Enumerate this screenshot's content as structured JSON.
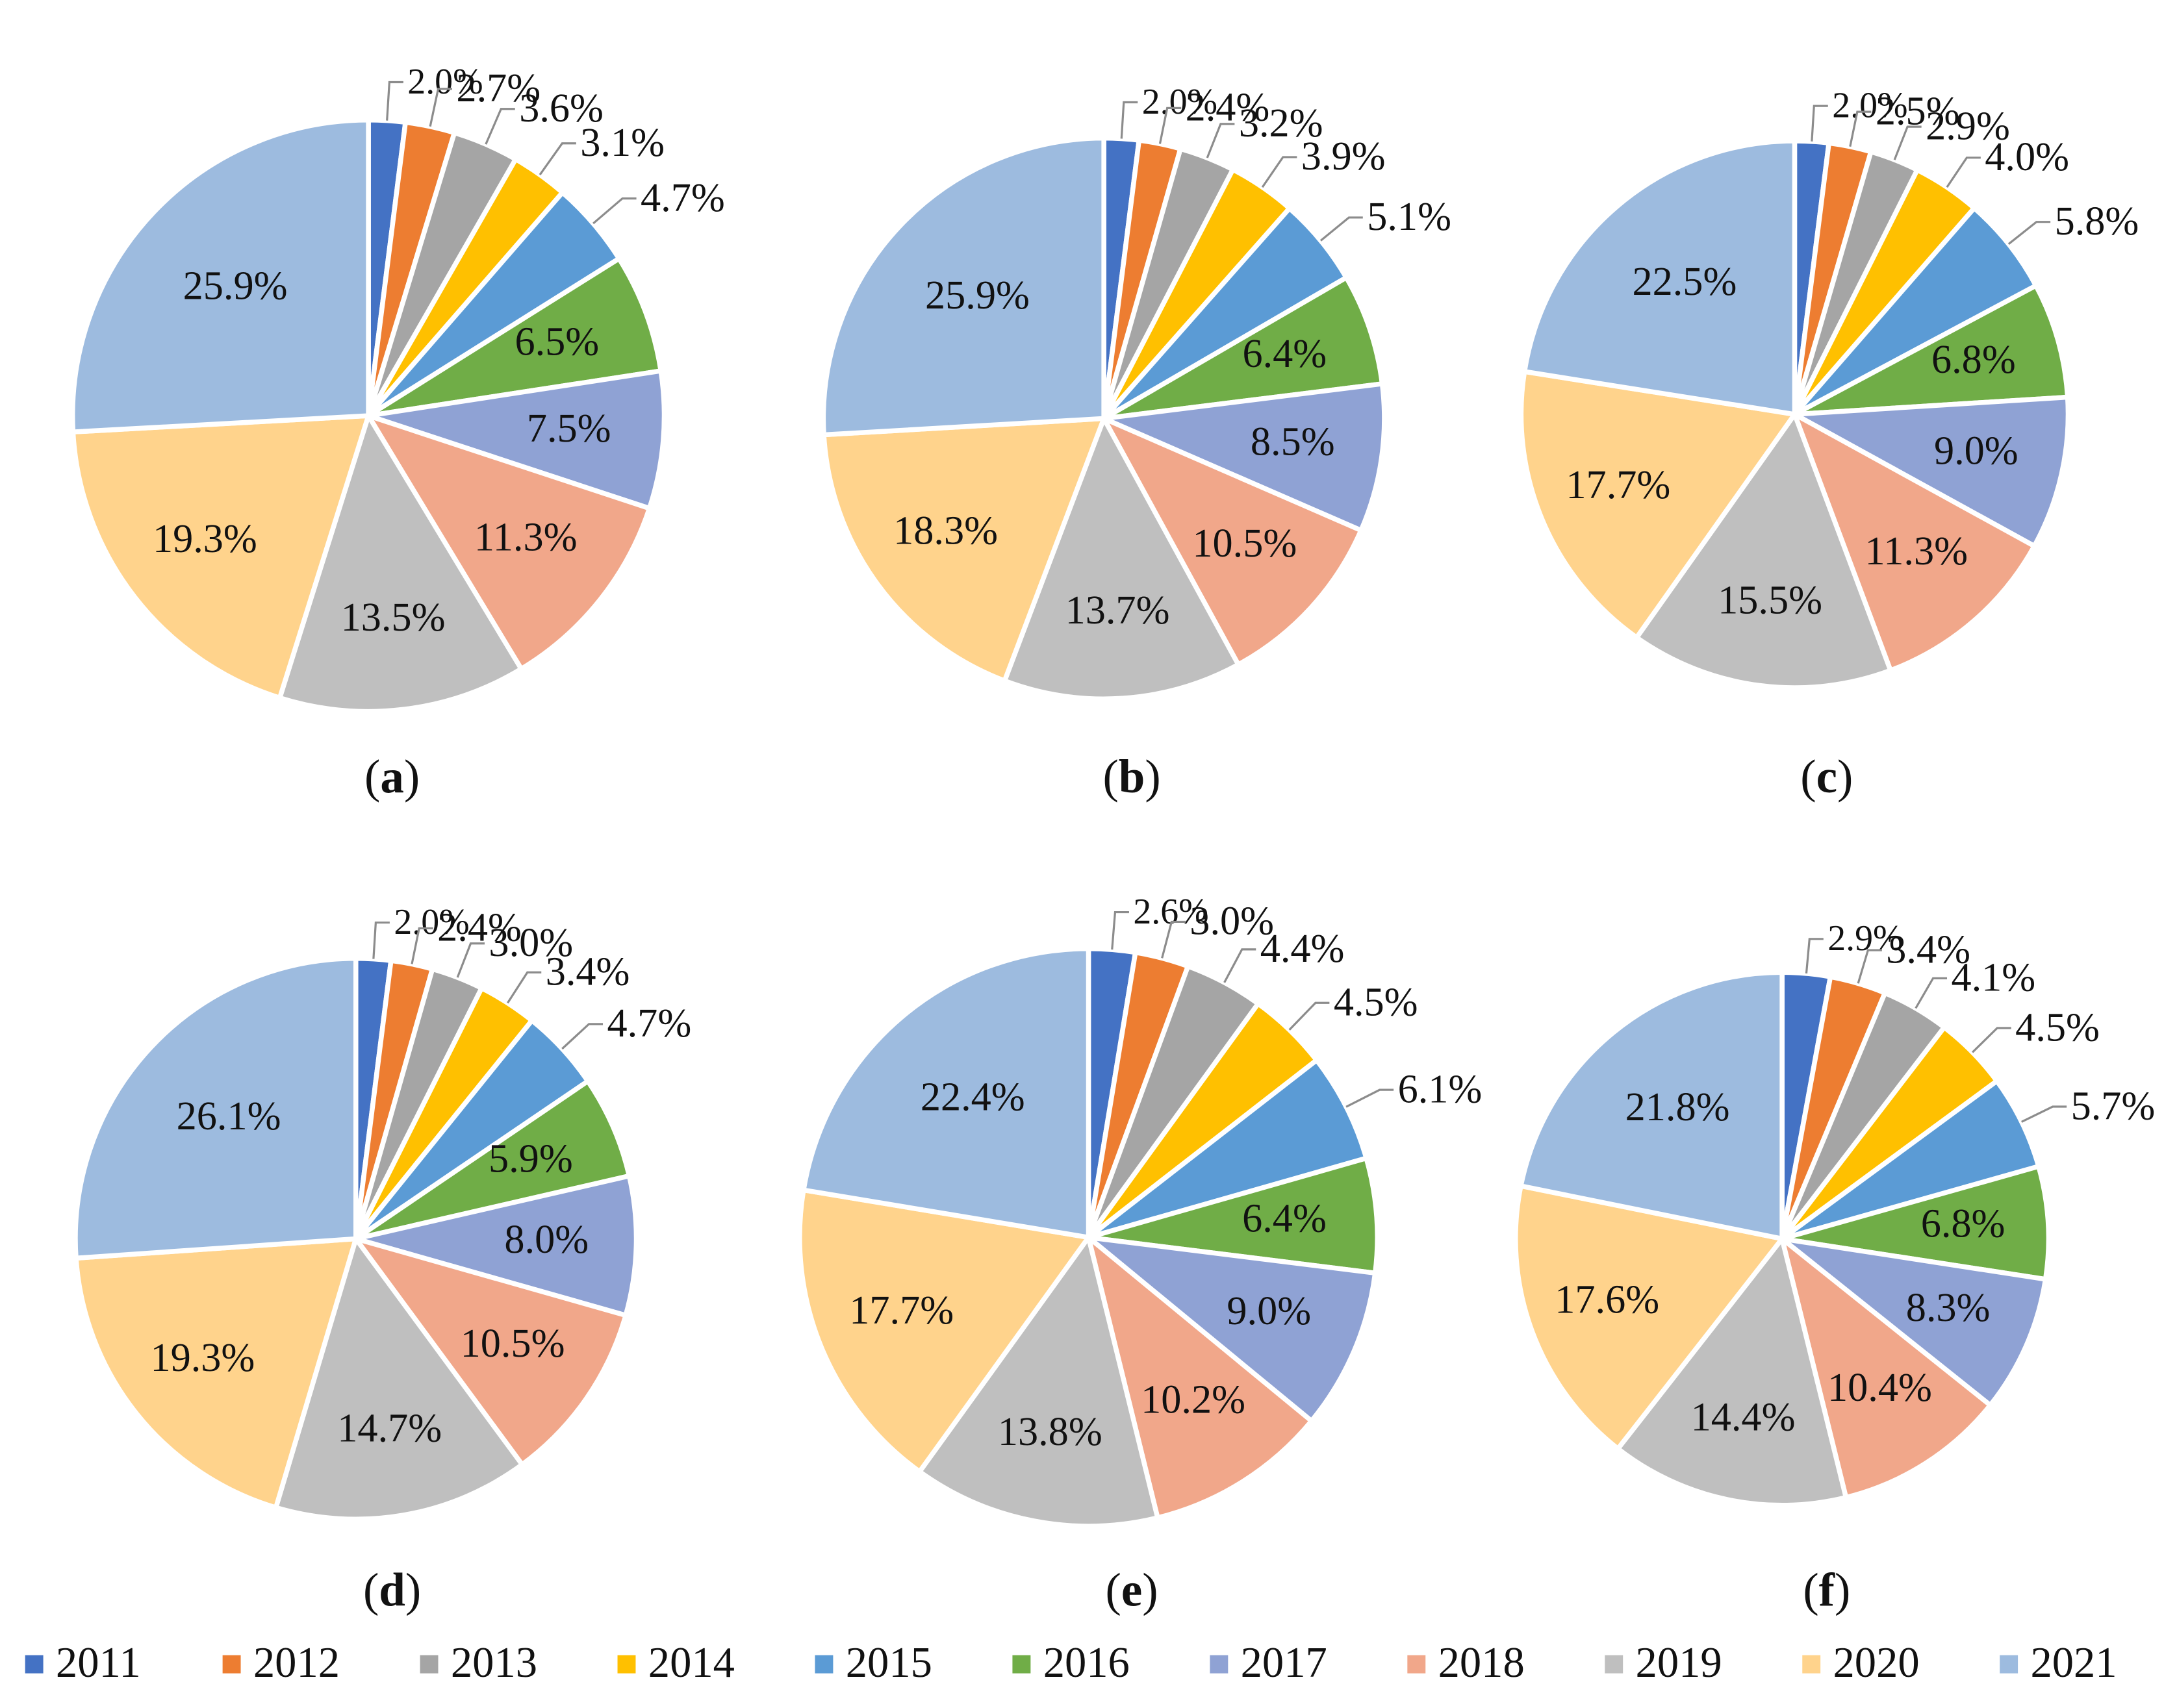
{
  "legend": {
    "years": [
      "2011",
      "2012",
      "2013",
      "2014",
      "2015",
      "2016",
      "2017",
      "2018",
      "2019",
      "2020",
      "2021"
    ],
    "colors": [
      "#4472C4",
      "#ED7D31",
      "#A5A5A5",
      "#FFC000",
      "#5B9BD5",
      "#70AD47",
      "#8FA2D4",
      "#F1A78A",
      "#BFBFBF",
      "#FFD38C",
      "#9DBBDF"
    ]
  },
  "chart_data": [
    {
      "type": "pie",
      "panel": "a",
      "caption": "(a)",
      "categories": [
        "2011",
        "2012",
        "2013",
        "2014",
        "2015",
        "2016",
        "2017",
        "2018",
        "2019",
        "2020",
        "2021"
      ],
      "values": [
        2.0,
        2.7,
        3.6,
        3.1,
        4.7,
        6.5,
        7.5,
        11.3,
        13.5,
        19.3,
        25.9
      ],
      "labels": [
        "2.0%",
        "2.7%",
        "3.6%",
        "3.1%",
        "4.7%",
        "6.5%",
        "7.5%",
        "11.3%",
        "13.5%",
        "19.3%",
        "25.9%"
      ]
    },
    {
      "type": "pie",
      "panel": "b",
      "caption": "(b)",
      "categories": [
        "2011",
        "2012",
        "2013",
        "2014",
        "2015",
        "2016",
        "2017",
        "2018",
        "2019",
        "2020",
        "2021"
      ],
      "values": [
        2.0,
        2.4,
        3.2,
        3.9,
        5.1,
        6.4,
        8.5,
        10.5,
        13.7,
        18.3,
        25.9
      ],
      "labels": [
        "2.0%",
        "2.4%",
        "3.2%",
        "3.9%",
        "5.1%",
        "6.4%",
        "8.5%",
        "10.5%",
        "13.7%",
        "18.3%",
        "25.9%"
      ]
    },
    {
      "type": "pie",
      "panel": "c",
      "caption": "(c)",
      "categories": [
        "2011",
        "2012",
        "2013",
        "2014",
        "2015",
        "2016",
        "2017",
        "2018",
        "2019",
        "2020",
        "2021"
      ],
      "values": [
        2.0,
        2.5,
        2.9,
        4.0,
        5.8,
        6.8,
        9.0,
        11.3,
        15.5,
        17.7,
        22.5
      ],
      "labels": [
        "2.0%",
        "2.5%",
        "2.9%",
        "4.0%",
        "5.8%",
        "6.8%",
        "9.0%",
        "11.3%",
        "15.5%",
        "17.7%",
        "22.5%"
      ]
    },
    {
      "type": "pie",
      "panel": "d",
      "caption": "(d)",
      "categories": [
        "2011",
        "2012",
        "2013",
        "2014",
        "2015",
        "2016",
        "2017",
        "2018",
        "2019",
        "2020",
        "2021"
      ],
      "values": [
        2.0,
        2.4,
        3.0,
        3.4,
        4.7,
        5.9,
        8.0,
        10.5,
        14.7,
        19.3,
        26.1
      ],
      "labels": [
        "2.0%",
        "2.4%",
        "3.0%",
        "3.4%",
        "4.7%",
        "5.9%",
        "8.0%",
        "10.5%",
        "14.7%",
        "19.3%",
        "26.1%"
      ]
    },
    {
      "type": "pie",
      "panel": "e",
      "caption": "(e)",
      "categories": [
        "2011",
        "2012",
        "2013",
        "2014",
        "2015",
        "2016",
        "2017",
        "2018",
        "2019",
        "2020",
        "2021"
      ],
      "values": [
        2.6,
        3.0,
        4.4,
        4.5,
        6.1,
        6.4,
        9.0,
        10.2,
        13.8,
        17.7,
        22.4
      ],
      "labels": [
        "2.6%",
        "3.0%",
        "4.4%",
        "4.5%",
        "6.1%",
        "6.4%",
        "9.0%",
        "10.2%",
        "13.8%",
        "17.7%",
        "22.4%"
      ]
    },
    {
      "type": "pie",
      "panel": "f",
      "caption": "(f)",
      "categories": [
        "2011",
        "2012",
        "2013",
        "2014",
        "2015",
        "2016",
        "2017",
        "2018",
        "2019",
        "2020",
        "2021"
      ],
      "values": [
        2.9,
        3.4,
        4.1,
        4.5,
        5.7,
        6.8,
        8.3,
        10.4,
        14.4,
        17.6,
        21.8
      ],
      "labels": [
        "2.9%",
        "3.4%",
        "4.1%",
        "4.5%",
        "5.7%",
        "6.8%",
        "8.3%",
        "10.4%",
        "14.4%",
        "17.6%",
        "21.8%"
      ]
    }
  ]
}
